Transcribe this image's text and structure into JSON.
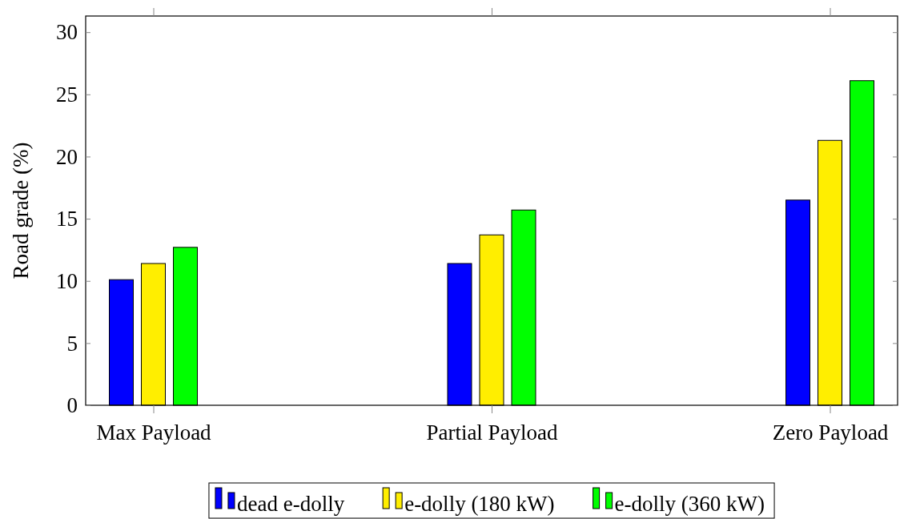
{
  "chart_data": {
    "type": "bar",
    "ylabel": "Road grade (%)",
    "categories": [
      "Max Payload",
      "Partial Payload",
      "Zero Payload"
    ],
    "series": [
      {
        "name": "dead e-dolly",
        "color": "#0000ff",
        "values": [
          10.1,
          11.4,
          16.5
        ]
      },
      {
        "name": "e-dolly (180 kW)",
        "color": "#ffee00",
        "values": [
          11.4,
          13.7,
          21.3
        ]
      },
      {
        "name": "e-dolly (360 kW)",
        "color": "#00ff00",
        "values": [
          12.7,
          15.7,
          26.1
        ]
      }
    ],
    "ylim": [
      0,
      31.3
    ],
    "yticks": [
      0,
      5,
      10,
      15,
      20,
      25,
      30
    ],
    "grid": false,
    "legend": "bottom"
  }
}
